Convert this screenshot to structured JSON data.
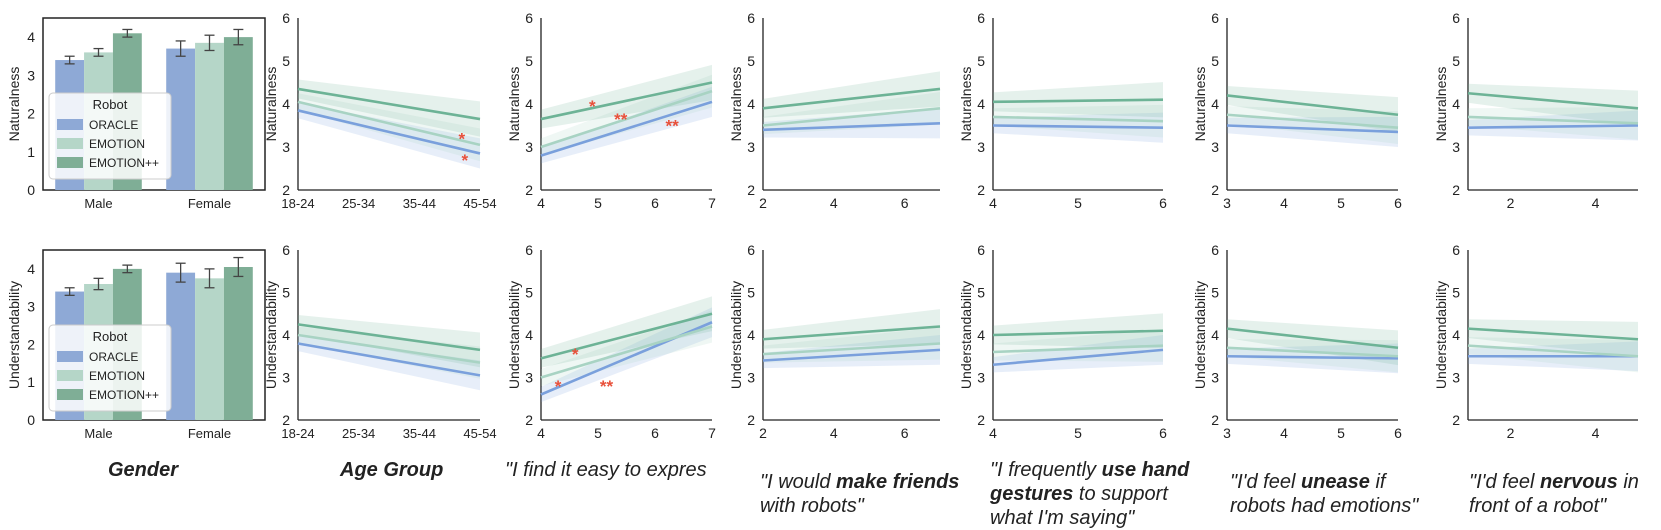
{
  "colors": {
    "ORACLE": "#8ea9d6",
    "EMOTION": "#b5d6c8",
    "EMOTION++": "#7fae96",
    "line_oracle": "#7aa0dc",
    "line_emotion": "#a8d3c3",
    "line_emotionpp": "#6db396",
    "star": "#e8503a",
    "axis": "#222222"
  },
  "legend": {
    "title": "Robot",
    "entries": [
      "ORACLE",
      "EMOTION",
      "EMOTION++"
    ]
  },
  "captions": [
    {
      "parts": [
        {
          "text": "Gender",
          "bold": true
        }
      ]
    },
    {
      "parts": [
        {
          "text": "Age Group",
          "bold": true
        }
      ]
    },
    {
      "parts": [
        {
          "text": "\"I find it easy to expres",
          "bold": false
        },
        {
          "text": "",
          "bold": false
        }
      ]
    },
    {
      "parts": [
        {
          "text": "\"I would ",
          "bold": false
        },
        {
          "text": "make friends",
          "bold": true
        },
        {
          "text": " with robots\"",
          "bold": false
        }
      ]
    },
    {
      "parts": [
        {
          "text": "\"I frequently ",
          "bold": false
        },
        {
          "text": "use hand gestures",
          "bold": true
        },
        {
          "text": " to support what I'm saying\"",
          "bold": false
        }
      ]
    },
    {
      "parts": [
        {
          "text": "\"I'd feel ",
          "bold": false
        },
        {
          "text": "unease",
          "bold": true
        },
        {
          "text": " if robots had emotions\"",
          "bold": false
        }
      ]
    },
    {
      "parts": [
        {
          "text": "\"I'd feel ",
          "bold": false
        },
        {
          "text": "nervous",
          "bold": true
        },
        {
          "text": " in front of a robot\"",
          "bold": false
        }
      ]
    }
  ],
  "chart_data": [
    {
      "type": "bar",
      "ylabel": "Naturalness",
      "ylim": [
        0,
        4.5
      ],
      "yticks": [
        0,
        1,
        2,
        3,
        4
      ],
      "categories": [
        "Male",
        "Female"
      ],
      "series": [
        {
          "name": "ORACLE",
          "values": [
            3.4,
            3.7
          ],
          "err": [
            0.1,
            0.2
          ]
        },
        {
          "name": "EMOTION",
          "values": [
            3.6,
            3.85
          ],
          "err": [
            0.1,
            0.2
          ]
        },
        {
          "name": "EMOTION++",
          "values": [
            4.1,
            4.0
          ],
          "err": [
            0.1,
            0.2
          ]
        }
      ]
    },
    {
      "type": "line",
      "ylabel": "Naturalness",
      "ylim": [
        2,
        6
      ],
      "yticks": [
        2,
        3,
        4,
        5,
        6
      ],
      "xcategories": [
        "18-24",
        "25-34",
        "35-44",
        "45-54"
      ],
      "xlim": [
        0,
        3
      ],
      "series": [
        {
          "name": "ORACLE",
          "y": [
            3.85,
            2.85
          ]
        },
        {
          "name": "EMOTION",
          "y": [
            4.05,
            3.05
          ]
        },
        {
          "name": "EMOTION++",
          "y": [
            4.35,
            3.65
          ]
        }
      ],
      "stars": [
        {
          "label": "*",
          "x": 2.7,
          "y": 3.2
        },
        {
          "label": "*",
          "x": 2.75,
          "y": 2.7
        }
      ]
    },
    {
      "type": "line",
      "ylabel": "Naturalness",
      "xlim": [
        4,
        7
      ],
      "xticks": [
        4,
        5,
        6,
        7
      ],
      "ylim": [
        2,
        6
      ],
      "yticks": [
        2,
        3,
        4,
        5,
        6
      ],
      "series": [
        {
          "name": "ORACLE",
          "y": [
            2.8,
            4.05
          ]
        },
        {
          "name": "EMOTION",
          "y": [
            3.0,
            4.3
          ]
        },
        {
          "name": "EMOTION++",
          "y": [
            3.65,
            4.5
          ]
        }
      ],
      "stars": [
        {
          "label": "*",
          "x": 4.9,
          "y": 3.95
        },
        {
          "label": "**",
          "x": 5.4,
          "y": 3.65
        },
        {
          "label": "**",
          "x": 6.3,
          "y": 3.5
        }
      ]
    },
    {
      "type": "line",
      "ylabel": "Naturalness",
      "xlim": [
        2,
        7
      ],
      "xticks": [
        2,
        4,
        6
      ],
      "ylim": [
        2,
        6
      ],
      "yticks": [
        2,
        3,
        4,
        5,
        6
      ],
      "series": [
        {
          "name": "ORACLE",
          "y": [
            3.4,
            3.55
          ]
        },
        {
          "name": "EMOTION",
          "y": [
            3.5,
            3.9
          ]
        },
        {
          "name": "EMOTION++",
          "y": [
            3.9,
            4.35
          ]
        }
      ],
      "stars": []
    },
    {
      "type": "line",
      "ylabel": "Naturalness",
      "xlim": [
        4,
        6
      ],
      "xticks": [
        4,
        5,
        6
      ],
      "ylim": [
        2,
        6
      ],
      "yticks": [
        2,
        3,
        4,
        5,
        6
      ],
      "series": [
        {
          "name": "ORACLE",
          "y": [
            3.5,
            3.45
          ]
        },
        {
          "name": "EMOTION",
          "y": [
            3.7,
            3.6
          ]
        },
        {
          "name": "EMOTION++",
          "y": [
            4.05,
            4.1
          ]
        }
      ],
      "stars": []
    },
    {
      "type": "line",
      "ylabel": "Naturalness",
      "xlim": [
        3,
        6
      ],
      "xticks": [
        3,
        4,
        5,
        6
      ],
      "ylim": [
        2,
        6
      ],
      "yticks": [
        2,
        3,
        4,
        5,
        6
      ],
      "series": [
        {
          "name": "ORACLE",
          "y": [
            3.5,
            3.35
          ]
        },
        {
          "name": "EMOTION",
          "y": [
            3.75,
            3.45
          ]
        },
        {
          "name": "EMOTION++",
          "y": [
            4.2,
            3.75
          ]
        }
      ],
      "stars": []
    },
    {
      "type": "line",
      "ylabel": "Naturalness",
      "xlim": [
        1,
        5
      ],
      "xticks": [
        2,
        4
      ],
      "ylim": [
        2,
        6
      ],
      "yticks": [
        2,
        3,
        4,
        5,
        6
      ],
      "series": [
        {
          "name": "ORACLE",
          "y": [
            3.45,
            3.5
          ]
        },
        {
          "name": "EMOTION",
          "y": [
            3.7,
            3.55
          ]
        },
        {
          "name": "EMOTION++",
          "y": [
            4.25,
            3.9
          ]
        }
      ],
      "stars": []
    },
    {
      "type": "bar",
      "ylabel": "Understandability",
      "ylim": [
        0,
        4.5
      ],
      "yticks": [
        0,
        1,
        2,
        3,
        4
      ],
      "categories": [
        "Male",
        "Female"
      ],
      "series": [
        {
          "name": "ORACLE",
          "values": [
            3.4,
            3.9
          ],
          "err": [
            0.1,
            0.25
          ]
        },
        {
          "name": "EMOTION",
          "values": [
            3.6,
            3.75
          ],
          "err": [
            0.15,
            0.25
          ]
        },
        {
          "name": "EMOTION++",
          "values": [
            4.0,
            4.05
          ],
          "err": [
            0.1,
            0.25
          ]
        }
      ]
    },
    {
      "type": "line",
      "ylabel": "Understandability",
      "ylim": [
        2,
        6
      ],
      "yticks": [
        2,
        3,
        4,
        5,
        6
      ],
      "xcategories": [
        "18-24",
        "25-34",
        "35-44",
        "45-54"
      ],
      "xlim": [
        0,
        3
      ],
      "series": [
        {
          "name": "ORACLE",
          "y": [
            3.8,
            3.05
          ]
        },
        {
          "name": "EMOTION",
          "y": [
            4.0,
            3.35
          ]
        },
        {
          "name": "EMOTION++",
          "y": [
            4.25,
            3.65
          ]
        }
      ],
      "stars": []
    },
    {
      "type": "line",
      "ylabel": "Understandability",
      "xlim": [
        4,
        7
      ],
      "xticks": [
        4,
        5,
        6,
        7
      ],
      "ylim": [
        2,
        6
      ],
      "yticks": [
        2,
        3,
        4,
        5,
        6
      ],
      "series": [
        {
          "name": "ORACLE",
          "y": [
            2.6,
            4.3
          ]
        },
        {
          "name": "EMOTION",
          "y": [
            3.0,
            4.2
          ]
        },
        {
          "name": "EMOTION++",
          "y": [
            3.45,
            4.5
          ]
        }
      ],
      "stars": [
        {
          "label": "*",
          "x": 4.6,
          "y": 3.55
        },
        {
          "label": "*",
          "x": 4.3,
          "y": 2.8
        },
        {
          "label": "**",
          "x": 5.15,
          "y": 2.8
        }
      ]
    },
    {
      "type": "line",
      "ylabel": "Understandability",
      "xlim": [
        2,
        7
      ],
      "xticks": [
        2,
        4,
        6
      ],
      "ylim": [
        2,
        6
      ],
      "yticks": [
        2,
        3,
        4,
        5,
        6
      ],
      "series": [
        {
          "name": "ORACLE",
          "y": [
            3.4,
            3.65
          ]
        },
        {
          "name": "EMOTION",
          "y": [
            3.55,
            3.8
          ]
        },
        {
          "name": "EMOTION++",
          "y": [
            3.9,
            4.2
          ]
        }
      ],
      "stars": []
    },
    {
      "type": "line",
      "ylabel": "Understandability",
      "xlim": [
        4,
        6
      ],
      "xticks": [
        4,
        5,
        6
      ],
      "ylim": [
        2,
        6
      ],
      "yticks": [
        2,
        3,
        4,
        5,
        6
      ],
      "series": [
        {
          "name": "ORACLE",
          "y": [
            3.3,
            3.65
          ]
        },
        {
          "name": "EMOTION",
          "y": [
            3.6,
            3.75
          ]
        },
        {
          "name": "EMOTION++",
          "y": [
            4.0,
            4.1
          ]
        }
      ],
      "stars": []
    },
    {
      "type": "line",
      "ylabel": "Understandability",
      "xlim": [
        3,
        6
      ],
      "xticks": [
        3,
        4,
        5,
        6
      ],
      "ylim": [
        2,
        6
      ],
      "yticks": [
        2,
        3,
        4,
        5,
        6
      ],
      "series": [
        {
          "name": "ORACLE",
          "y": [
            3.5,
            3.45
          ]
        },
        {
          "name": "EMOTION",
          "y": [
            3.7,
            3.5
          ]
        },
        {
          "name": "EMOTION++",
          "y": [
            4.15,
            3.7
          ]
        }
      ],
      "stars": []
    },
    {
      "type": "line",
      "ylabel": "Understandability",
      "xlim": [
        1,
        5
      ],
      "xticks": [
        2,
        4
      ],
      "ylim": [
        2,
        6
      ],
      "yticks": [
        2,
        3,
        4,
        5,
        6
      ],
      "series": [
        {
          "name": "ORACLE",
          "y": [
            3.5,
            3.5
          ]
        },
        {
          "name": "EMOTION",
          "y": [
            3.75,
            3.5
          ]
        },
        {
          "name": "EMOTION++",
          "y": [
            4.15,
            3.9
          ]
        }
      ],
      "stars": []
    }
  ]
}
